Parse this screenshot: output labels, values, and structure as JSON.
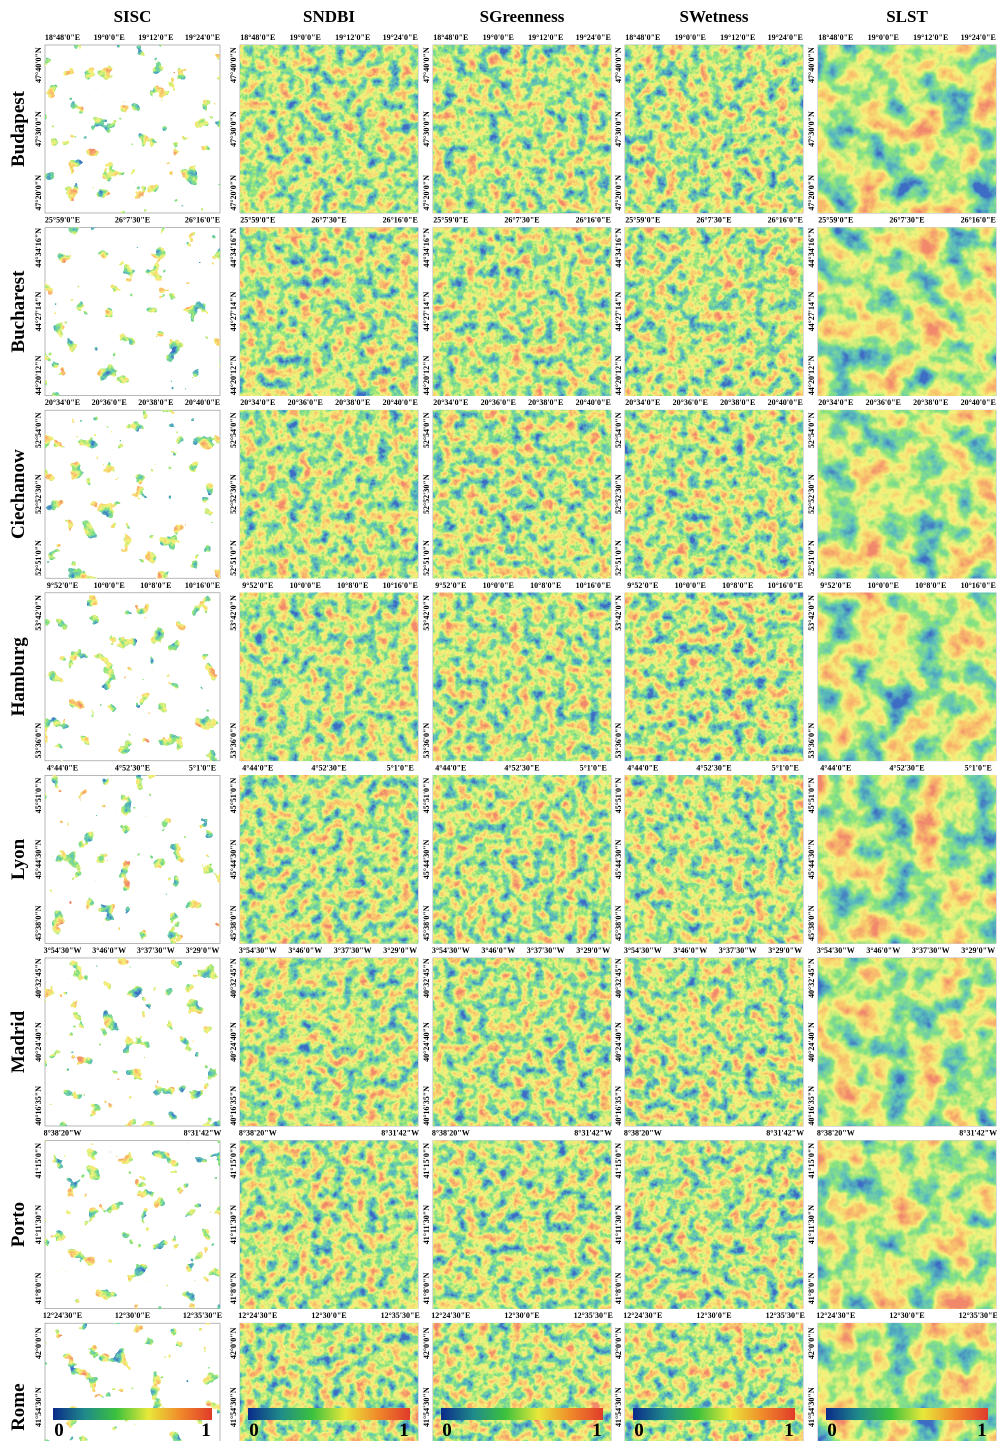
{
  "columns": [
    "SISC",
    "SNDBI",
    "SGreenness",
    "SWetness",
    "SLST"
  ],
  "rows": [
    {
      "name": "Budapest",
      "x_labels": [
        "18°48'0\"E",
        "19°0'0\"E",
        "19°12'0\"E",
        "19°24'0\"E"
      ],
      "y_labels": [
        "47°40'0\"N",
        "47°30'0\"N",
        "47°20'0\"N"
      ]
    },
    {
      "name": "Bucharest",
      "x_labels": [
        "25°59'0\"E",
        "26°7'30\"E",
        "26°16'0\"E"
      ],
      "y_labels": [
        "44°34'16\"N",
        "44°27'14\"N",
        "44°20'12\"N"
      ]
    },
    {
      "name": "Ciechanow",
      "x_labels": [
        "20°34'0\"E",
        "20°36'0\"E",
        "20°38'0\"E",
        "20°40'0\"E"
      ],
      "y_labels": [
        "52°54'0\"N",
        "52°52'30\"N",
        "52°51'0\"N"
      ]
    },
    {
      "name": "Hamburg",
      "x_labels": [
        "9°52'0\"E",
        "10°0'0\"E",
        "10°8'0\"E",
        "10°16'0\"E"
      ],
      "y_labels": [
        "53°42'0\"N",
        "53°36'0\"N"
      ]
    },
    {
      "name": "Lyon",
      "x_labels": [
        "4°44'0\"E",
        "4°52'30\"E",
        "5°1'0\"E"
      ],
      "y_labels": [
        "45°51'0\"N",
        "45°44'30\"N",
        "45°38'0\"N"
      ]
    },
    {
      "name": "Madrid",
      "x_labels": [
        "3°54'30\"W",
        "3°46'0\"W",
        "3°37'30\"W",
        "3°29'0\"W"
      ],
      "y_labels": [
        "40°32'45\"N",
        "40°24'40\"N",
        "40°16'35\"N"
      ]
    },
    {
      "name": "Porto",
      "x_labels": [
        "8°38'20\"W",
        "8°31'42\"W"
      ],
      "y_labels": [
        "41°15'0\"N",
        "41°11'30\"N",
        "41°8'0\"N"
      ]
    },
    {
      "name": "Rome",
      "x_labels": [
        "12°24'30\"E",
        "12°30'0\"E",
        "12°35'30\"E"
      ],
      "y_labels": [
        "42°0'0\"N",
        "41°54'30\"N",
        "41°49'0\"N"
      ]
    }
  ],
  "colorbar": {
    "ticks": [
      0,
      1
    ]
  }
}
